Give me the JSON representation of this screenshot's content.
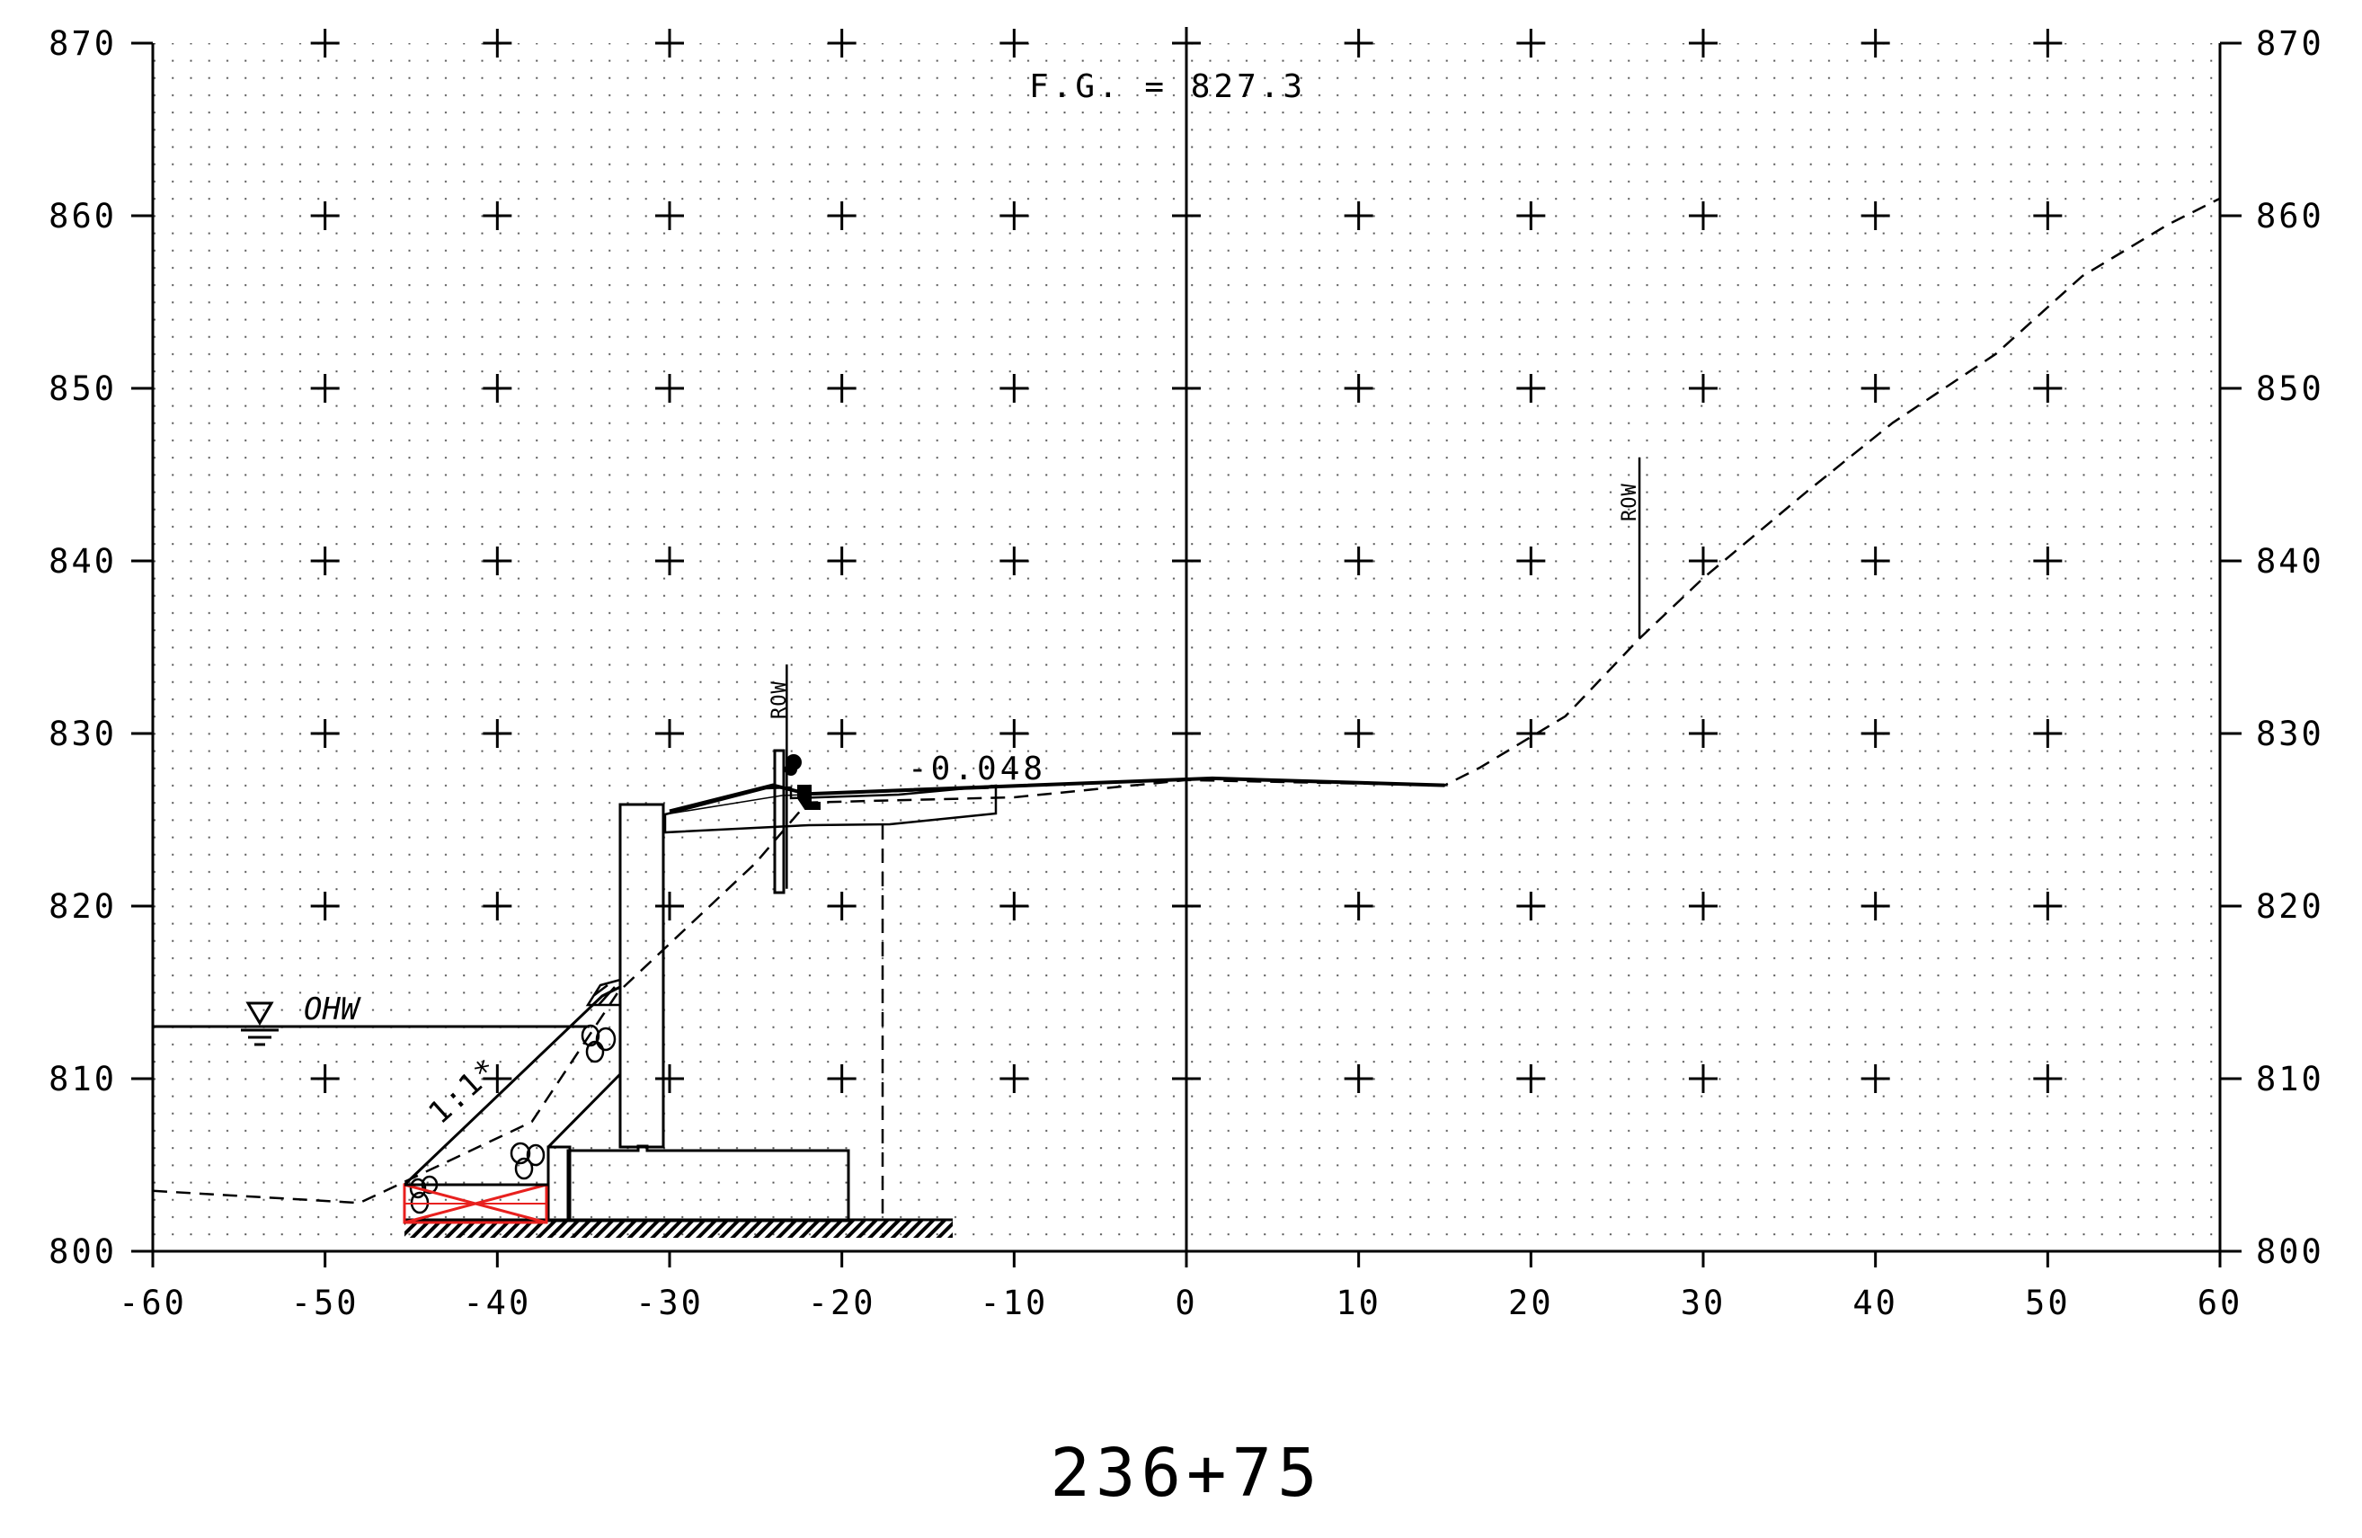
{
  "drawing": {
    "type": "cross-section",
    "station": "236+75",
    "finish_grade_label": "F.G. = 827.3",
    "slope_label": "-0.048",
    "embankment_slope_label": "1:1*",
    "ohw_label": "OHW",
    "row_label": "ROW"
  },
  "axes": {
    "x_range": [
      -60,
      60
    ],
    "y_range": [
      800,
      870
    ],
    "x_ticks": [
      "-60",
      "-50",
      "-40",
      "-30",
      "-20",
      "-10",
      "0",
      "10",
      "20",
      "30",
      "40",
      "50",
      "60"
    ],
    "y_ticks": [
      "800",
      "810",
      "820",
      "830",
      "840",
      "850",
      "860",
      "870"
    ]
  },
  "features": {
    "existing_ground": [
      [
        -60,
        803.5
      ],
      [
        -48,
        802.8
      ],
      [
        -46.5,
        803.5
      ],
      [
        -38,
        807.5
      ],
      [
        -33,
        815
      ],
      [
        -25,
        822.5
      ],
      [
        -22,
        826
      ],
      [
        -10,
        826.3
      ],
      [
        0,
        827.3
      ],
      [
        15,
        827
      ],
      [
        17,
        828
      ],
      [
        22,
        831
      ],
      [
        26.3,
        835.5
      ],
      [
        30,
        839
      ],
      [
        36,
        844
      ],
      [
        41,
        848
      ],
      [
        47,
        852
      ],
      [
        52,
        856.5
      ],
      [
        57,
        859.5
      ],
      [
        60,
        861
      ]
    ],
    "finish_grade": [
      [
        -30,
        825.5
      ],
      [
        -24,
        827
      ],
      [
        -22,
        826.5
      ],
      [
        1.5,
        827.4
      ],
      [
        15,
        827
      ]
    ],
    "ohw_elevation": 813.2,
    "row_left": {
      "x": -23.2,
      "top": 834,
      "bottom": 821
    },
    "row_right": {
      "x": 26.3,
      "top": 846,
      "bottom": 835.5
    }
  },
  "colors": {
    "ink": "#000000",
    "grid_dots": "#000000",
    "cross_bracing": "#e8201e"
  }
}
